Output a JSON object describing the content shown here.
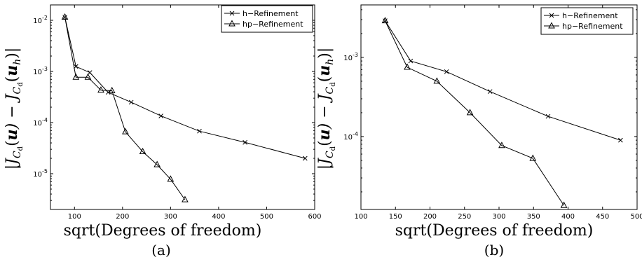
{
  "chart_data": [
    {
      "type": "line",
      "caption": "(a)",
      "xlabel": "sqrt(Degrees of freedom)",
      "ylabel": "|J_{C_d}(u) − J_{C_d}(u_h)|",
      "xlim": [
        50,
        600
      ],
      "ylim": [
        2e-06,
        0.02
      ],
      "yscale": "log",
      "xticks": [
        "100",
        "200",
        "300",
        "400",
        "500",
        "600"
      ],
      "yticks": [
        "10^-5",
        "10^-4",
        "10^-3",
        "10^-2"
      ],
      "legend_position": "top-right",
      "series": [
        {
          "name": "h−Refinement",
          "marker": "x",
          "x": [
            80,
            103,
            132,
            170,
            218,
            280,
            360,
            455,
            580
          ],
          "y": [
            0.0115,
            0.00125,
            0.00095,
            0.00039,
            0.00025,
            0.000135,
            6.8e-05,
            4.1e-05,
            2e-05
          ]
        },
        {
          "name": "hp−Refinement",
          "marker": "triangle",
          "x": [
            80,
            103,
            128,
            155,
            178,
            206,
            242,
            272,
            300,
            330
          ],
          "y": [
            0.0115,
            0.00077,
            0.00077,
            0.00043,
            0.00042,
            6.6e-05,
            2.7e-05,
            1.5e-05,
            7.8e-06,
            3.1e-06
          ]
        }
      ]
    },
    {
      "type": "line",
      "caption": "(b)",
      "xlabel": "sqrt(Degrees of freedom)",
      "ylabel": "|J_{C_d}(u) − J_{C_d}(u_h)|",
      "xlim": [
        100,
        500
      ],
      "ylim": [
        1.2e-05,
        0.0046
      ],
      "yscale": "log",
      "xticks": [
        "100",
        "150",
        "200",
        "250",
        "300",
        "350",
        "400",
        "450",
        "500"
      ],
      "yticks": [
        "10^-4",
        "10^-3"
      ],
      "legend_position": "top-right",
      "series": [
        {
          "name": "h−Refinement",
          "marker": "x",
          "x": [
            135,
            172,
            224,
            287,
            371,
            476
          ],
          "y": [
            0.0029,
            0.0009,
            0.00066,
            0.00037,
            0.00018,
            9e-05
          ]
        },
        {
          "name": "hp−Refinement",
          "marker": "triangle",
          "x": [
            135,
            167,
            210,
            258,
            304,
            349,
            394
          ],
          "y": [
            0.0029,
            0.00075,
            0.0005,
            0.0002,
            7.7e-05,
            5.3e-05,
            1.35e-05
          ]
        }
      ]
    }
  ]
}
